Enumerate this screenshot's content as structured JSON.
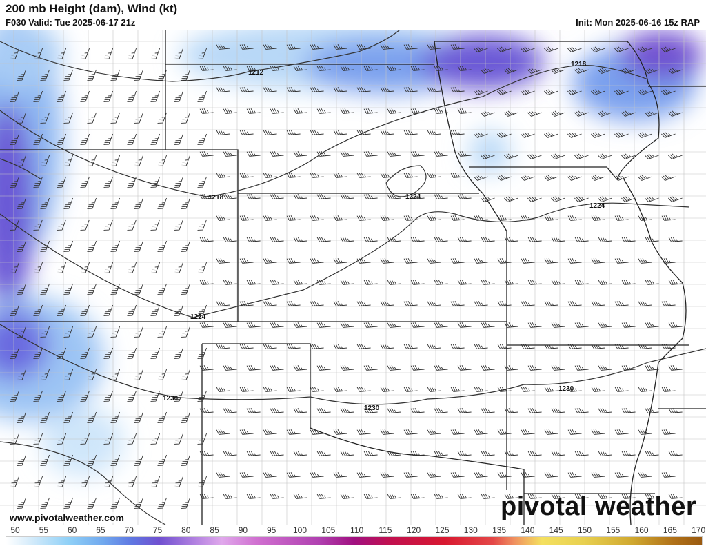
{
  "header": {
    "title": "200 mb Height (dam), Wind (kt)",
    "valid": "F030 Valid: Tue 2025-06-17 21z",
    "init": "Init: Mon 2025-06-16 15z RAP"
  },
  "map": {
    "contour_labels": [
      "1212",
      "1218",
      "1218",
      "1224",
      "1224",
      "1224",
      "1230",
      "1230",
      "1230"
    ],
    "colors": {
      "contour": "#333333",
      "border": "#222222",
      "county": "#bbbbbb",
      "wind_blue": "#6fa8ee",
      "wind_purple": "#7755d8"
    }
  },
  "footer": {
    "website": "www.pivotalweather.com",
    "brand": "pivotal weather"
  },
  "colorbar": {
    "unit": "kt",
    "labels": [
      "50",
      "55",
      "60",
      "65",
      "70",
      "75",
      "80",
      "85",
      "90",
      "95",
      "100",
      "105",
      "110",
      "115",
      "120",
      "125",
      "130",
      "135",
      "140",
      "145",
      "150",
      "155",
      "160",
      "165",
      "170"
    ]
  }
}
